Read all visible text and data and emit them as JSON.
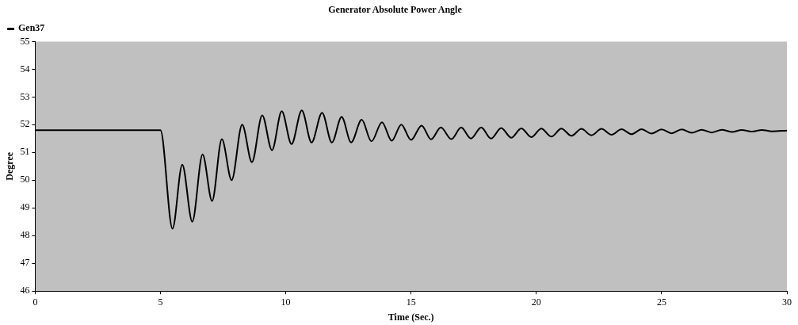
{
  "chart_data": {
    "type": "line",
    "title": "Generator Absolute Power Angle",
    "xlabel": "Time (Sec.)",
    "ylabel": "Degree",
    "x": [
      0,
      5.0,
      5.48,
      5.87,
      6.27,
      6.68,
      7.06,
      7.45,
      7.84,
      8.26,
      8.65,
      9.06,
      9.45,
      9.84,
      10.23,
      10.64,
      11.03,
      11.45,
      11.84,
      12.23,
      12.61,
      13.03,
      13.42,
      13.84,
      14.23,
      14.61,
      15.0,
      15.42,
      15.8,
      16.19,
      16.61,
      17.0,
      17.39,
      17.8,
      18.19,
      18.6,
      19.0,
      19.4,
      19.8,
      20.2,
      20.6,
      21.0,
      21.4,
      21.8,
      22.2,
      22.6,
      23.0,
      23.4,
      23.8,
      24.2,
      24.6,
      25.0,
      25.4,
      25.8,
      26.2,
      26.6,
      27.0,
      27.4,
      27.8,
      28.2,
      28.6,
      29.0,
      29.4,
      30
    ],
    "series": [
      {
        "name": "Gen37",
        "color": "#000000",
        "values": [
          51.8,
          51.8,
          48.25,
          50.56,
          48.5,
          50.93,
          49.25,
          51.48,
          50.0,
          52.0,
          50.65,
          52.34,
          51.08,
          52.49,
          51.3,
          52.52,
          51.36,
          52.43,
          51.36,
          52.28,
          51.36,
          52.18,
          51.4,
          52.09,
          51.42,
          52.0,
          51.45,
          51.97,
          51.47,
          51.9,
          51.48,
          51.9,
          51.5,
          51.9,
          51.5,
          51.88,
          51.53,
          51.87,
          51.55,
          51.86,
          51.57,
          51.86,
          51.6,
          51.85,
          51.62,
          51.85,
          51.64,
          51.84,
          51.66,
          51.84,
          51.68,
          51.83,
          51.69,
          51.83,
          51.71,
          51.82,
          51.72,
          51.82,
          51.74,
          51.81,
          51.75,
          51.81,
          51.76,
          51.79
        ]
      }
    ],
    "xlim": [
      0,
      30
    ],
    "xticks": [
      0,
      5,
      10,
      15,
      20,
      25,
      30
    ],
    "ylim": [
      46,
      55
    ],
    "yticks": [
      46,
      47,
      48,
      49,
      50,
      51,
      52,
      53,
      54,
      55
    ],
    "grid": false,
    "legend": "top left",
    "marker": "none",
    "line_style": "solid"
  }
}
